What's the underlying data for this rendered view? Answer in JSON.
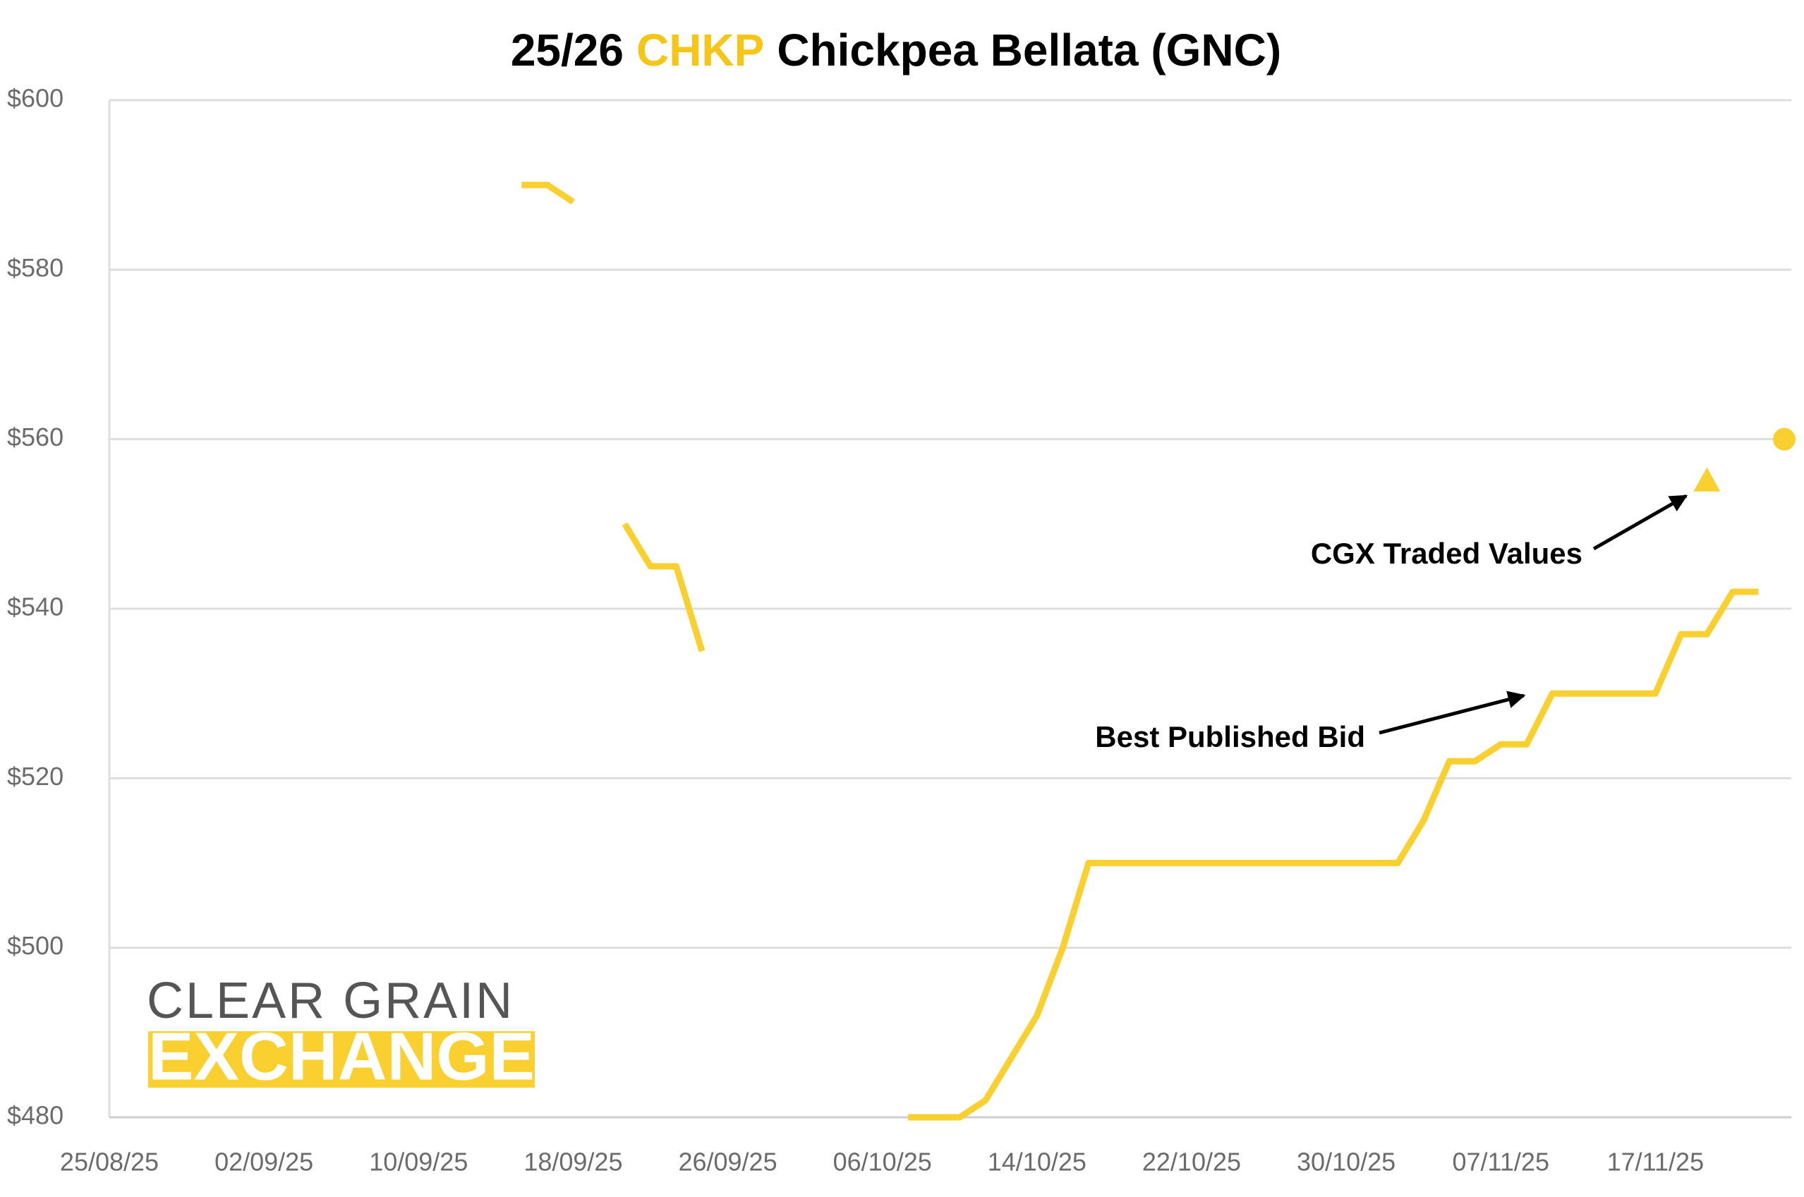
{
  "chart_data": {
    "type": "line",
    "title_parts": [
      {
        "text": "25/26",
        "color": "#000000"
      },
      {
        "text": "CHKP",
        "color": "#f5c518"
      },
      {
        "text": "Chickpea Bellata (GNC)",
        "color": "#000000"
      }
    ],
    "categories": [
      "25/08/25",
      null,
      null,
      null,
      null,
      null,
      "02/09/25",
      null,
      null,
      null,
      null,
      null,
      "10/09/25",
      null,
      null,
      null,
      null,
      null,
      "18/09/25",
      null,
      null,
      null,
      null,
      null,
      "26/09/25",
      null,
      null,
      null,
      null,
      null,
      "06/10/25",
      null,
      null,
      null,
      null,
      null,
      "14/10/25",
      null,
      null,
      null,
      null,
      null,
      "22/10/25",
      null,
      null,
      null,
      null,
      null,
      "30/10/25",
      null,
      null,
      null,
      null,
      null,
      "07/11/25",
      null,
      null,
      null,
      null,
      null,
      "17/11/25",
      null,
      null,
      null,
      null,
      null
    ],
    "series": [
      {
        "name": "Best Published Bid",
        "color": "#f9d02f",
        "values": [
          null,
          null,
          null,
          null,
          null,
          null,
          null,
          null,
          null,
          null,
          null,
          null,
          null,
          null,
          null,
          null,
          590,
          590,
          588,
          null,
          550,
          545,
          545,
          535,
          null,
          null,
          null,
          null,
          null,
          null,
          null,
          480,
          480,
          480,
          482,
          487,
          492,
          500,
          510,
          510,
          510,
          510,
          510,
          510,
          510,
          510,
          510,
          510,
          510,
          510,
          510,
          515,
          522,
          522,
          524,
          524,
          530,
          530,
          530,
          530,
          530,
          537,
          537,
          542,
          542,
          null
        ]
      },
      {
        "name": "CGX Traded Values",
        "color": "#f9d02f",
        "markers": [
          "triangle",
          "circle"
        ],
        "values": [
          null,
          null,
          null,
          null,
          null,
          null,
          null,
          null,
          null,
          null,
          null,
          null,
          null,
          null,
          null,
          null,
          null,
          null,
          null,
          null,
          null,
          null,
          null,
          null,
          null,
          null,
          null,
          null,
          null,
          null,
          null,
          null,
          null,
          null,
          null,
          null,
          null,
          null,
          null,
          null,
          null,
          null,
          null,
          null,
          null,
          null,
          null,
          null,
          null,
          null,
          null,
          null,
          null,
          null,
          null,
          null,
          null,
          null,
          null,
          null,
          null,
          null,
          555,
          null,
          null,
          560
        ]
      }
    ],
    "ylim": [
      480,
      600
    ],
    "yticks": [
      {
        "value": 480,
        "label": "$480"
      },
      {
        "value": 500,
        "label": "$500"
      },
      {
        "value": 520,
        "label": "$520"
      },
      {
        "value": 540,
        "label": "$540"
      },
      {
        "value": 560,
        "label": "$560"
      },
      {
        "value": 580,
        "label": "$580"
      },
      {
        "value": 600,
        "label": "$600"
      }
    ],
    "grid": true
  },
  "logo": {
    "line1": "CLEAR GRAIN",
    "line2": "EXCHANGE"
  }
}
